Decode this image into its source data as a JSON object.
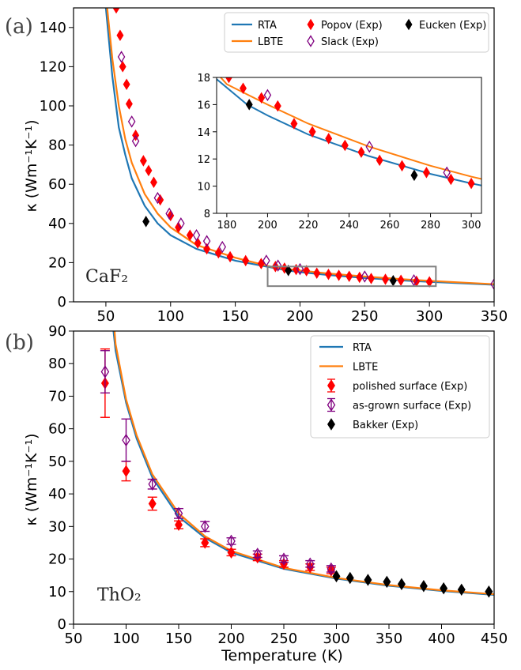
{
  "colors": {
    "rta": "#1f77b4",
    "lbte": "#ff7f0e",
    "popov": "#ff0000",
    "slack": "#800080",
    "eucken": "#000000",
    "polished": "#ff0000",
    "asgrown": "#800080",
    "bakker": "#000000",
    "zoombox": "#808080"
  },
  "chart_data": [
    {
      "type": "line",
      "panel_label": "(a)",
      "material_label": "CaF₂",
      "xlabel": "",
      "ylabel": "κ (Wm⁻¹K⁻¹)",
      "xlim": [
        25,
        350
      ],
      "ylim": [
        0,
        150
      ],
      "xticks": [
        50,
        100,
        150,
        200,
        250,
        300,
        350
      ],
      "yticks": [
        0,
        20,
        40,
        60,
        80,
        100,
        120,
        140
      ],
      "legend_position": "top-right",
      "series": [
        {
          "name": "RTA",
          "kind": "line",
          "color_key": "rta",
          "x": [
            50,
            55,
            60,
            65,
            70,
            80,
            90,
            100,
            120,
            150,
            190,
            200,
            220,
            250,
            280,
            300,
            350
          ],
          "y": [
            150,
            115,
            89,
            75,
            63,
            49,
            40,
            34,
            27,
            21,
            16.0,
            15.2,
            13.8,
            12.2,
            10.9,
            10.2,
            8.7
          ]
        },
        {
          "name": "LBTE",
          "kind": "line",
          "color_key": "lbte",
          "x": [
            51,
            55,
            60,
            65,
            70,
            80,
            90,
            100,
            120,
            150,
            180,
            200,
            220,
            250,
            280,
            300,
            350
          ],
          "y": [
            150,
            124,
            100,
            83,
            71,
            55,
            45,
            38,
            29,
            22.5,
            17.5,
            16.0,
            14.6,
            12.9,
            11.5,
            10.7,
            9.0
          ]
        },
        {
          "name": "Popov (Exp)",
          "kind": "marker",
          "marker": "diamond-filled",
          "color_key": "popov",
          "x": [
            58,
            61,
            63,
            66,
            68,
            73,
            79,
            83,
            87,
            92,
            100,
            106,
            115,
            121,
            128,
            137,
            146,
            158,
            170,
            181,
            188,
            197,
            205,
            213,
            222,
            230,
            238,
            246,
            255,
            266,
            278,
            290,
            300
          ],
          "y": [
            150,
            136,
            120,
            111,
            101,
            85,
            72,
            67,
            61,
            52,
            44,
            38,
            34,
            30,
            27,
            25,
            23,
            21,
            19.5,
            18,
            17.2,
            16.5,
            15.9,
            14.6,
            14.0,
            13.5,
            13.0,
            12.5,
            11.9,
            11.5,
            11.0,
            10.5,
            10.2
          ]
        },
        {
          "name": "Slack (Exp)",
          "kind": "marker",
          "marker": "diamond-open",
          "color_key": "slack",
          "x": [
            62,
            70,
            73,
            90,
            99,
            108,
            120,
            128,
            140,
            174,
            183,
            200,
            250,
            288,
            350
          ],
          "y": [
            125,
            92,
            82,
            53,
            45,
            40,
            34,
            31,
            28,
            21,
            18.5,
            16.7,
            12.9,
            11.0,
            9
          ]
        },
        {
          "name": "Eucken (Exp)",
          "kind": "marker",
          "marker": "diamond-filled",
          "color_key": "eucken",
          "x": [
            81,
            191,
            272
          ],
          "y": [
            41,
            16.0,
            10.8
          ]
        }
      ],
      "zoom_box": {
        "x": [
          175,
          305
        ],
        "y": [
          8,
          18
        ]
      },
      "inset": {
        "xlim": [
          175,
          305
        ],
        "ylim": [
          8,
          18
        ],
        "xticks": [
          180,
          200,
          220,
          240,
          260,
          280,
          300
        ],
        "yticks": [
          8,
          10,
          12,
          14,
          16,
          18
        ]
      }
    },
    {
      "type": "line",
      "panel_label": "(b)",
      "material_label": "ThO₂",
      "xlabel": "Temperature (K)",
      "ylabel": "κ (Wm⁻¹K⁻¹)",
      "xlim": [
        50,
        450
      ],
      "ylim": [
        0,
        90
      ],
      "xticks": [
        50,
        100,
        150,
        200,
        250,
        300,
        350,
        400,
        450
      ],
      "yticks": [
        0,
        10,
        20,
        30,
        40,
        50,
        60,
        70,
        80,
        90
      ],
      "legend_position": "top-right",
      "series": [
        {
          "name": "RTA",
          "kind": "line",
          "color_key": "rta",
          "x": [
            88,
            90,
            100,
            110,
            125,
            150,
            175,
            200,
            250,
            300,
            350,
            400,
            450
          ],
          "y": [
            90,
            84,
            68,
            57,
            45,
            33,
            26.5,
            22,
            17,
            14,
            11.8,
            10.2,
            9.0
          ]
        },
        {
          "name": "LBTE",
          "kind": "line",
          "color_key": "lbte",
          "x": [
            89,
            90,
            100,
            110,
            125,
            150,
            175,
            200,
            250,
            300,
            350,
            400,
            450
          ],
          "y": [
            90,
            86,
            69,
            58,
            46,
            34,
            27,
            22.5,
            17.3,
            14.2,
            12.0,
            10.4,
            9.2
          ]
        },
        {
          "name": "polished surface (Exp)",
          "kind": "errorbar",
          "marker": "diamond-filled",
          "color_key": "polished",
          "x": [
            80,
            100,
            125,
            150,
            175,
            200,
            225,
            250,
            275,
            295
          ],
          "y": [
            74,
            47,
            37,
            30.5,
            25,
            22,
            20.5,
            18.5,
            17.5,
            16.5
          ],
          "err": [
            10.5,
            3,
            2,
            1.2,
            1.2,
            1,
            1,
            1,
            1,
            1
          ]
        },
        {
          "name": "as-grown surface (Exp)",
          "kind": "errorbar",
          "marker": "diamond-open",
          "color_key": "asgrown",
          "x": [
            80,
            100,
            125,
            150,
            175,
            200,
            225,
            250,
            275,
            295
          ],
          "y": [
            77.5,
            56.5,
            43,
            34,
            30,
            25.5,
            21.5,
            20,
            18.5,
            17
          ],
          "err": [
            6.5,
            6.5,
            1.5,
            1.5,
            1.5,
            1,
            1,
            1,
            1,
            1
          ]
        },
        {
          "name": "Bakker (Exp)",
          "kind": "marker",
          "marker": "diamond-filled",
          "color_key": "bakker",
          "x": [
            300,
            313,
            330,
            348,
            362,
            383,
            402,
            419,
            445
          ],
          "y": [
            14.7,
            14.2,
            13.6,
            13.0,
            12.3,
            11.7,
            11.0,
            10.6,
            10.0
          ]
        }
      ]
    }
  ]
}
